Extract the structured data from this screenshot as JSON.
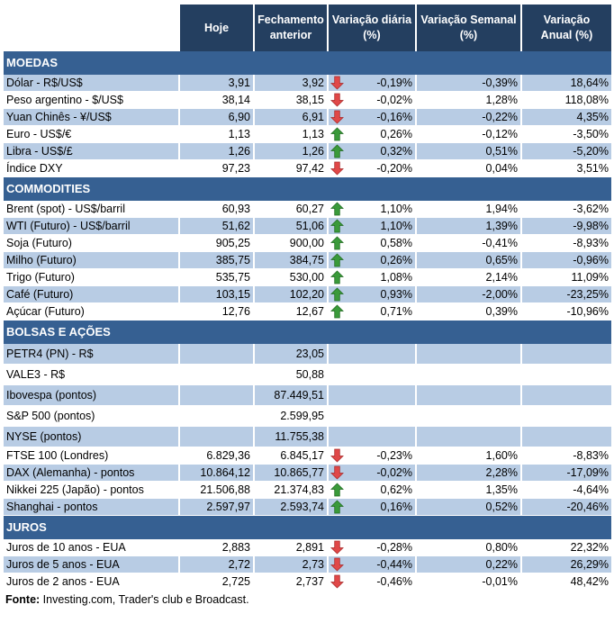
{
  "header": {
    "label": "",
    "hoje": "Hoje",
    "fechamento": "Fechamento anterior",
    "var_diaria": "Variação diária (%)",
    "var_semanal": "Variação Semanal (%)",
    "var_anual": "Variação Anual (%)"
  },
  "colors": {
    "header": "#243F60",
    "section": "#366092",
    "stripe": "#B8CCE4",
    "up": "#3A9A3A",
    "down": "#E04848"
  },
  "sections": [
    {
      "title": "MOEDAS",
      "rows": [
        {
          "name": "Dólar - R$/US$",
          "hoje": "3,91",
          "fech": "3,92",
          "dir": "down",
          "dia": "-0,19%",
          "sem": "-0,39%",
          "ano": "18,64%"
        },
        {
          "name": "Peso argentino - $/US$",
          "hoje": "38,14",
          "fech": "38,15",
          "dir": "down",
          "dia": "-0,02%",
          "sem": "1,28%",
          "ano": "118,08%"
        },
        {
          "name": "Yuan Chinês - ¥/US$",
          "hoje": "6,90",
          "fech": "6,91",
          "dir": "down",
          "dia": "-0,16%",
          "sem": "-0,22%",
          "ano": "4,35%"
        },
        {
          "name": "Euro - US$/€",
          "hoje": "1,13",
          "fech": "1,13",
          "dir": "up",
          "dia": "0,26%",
          "sem": "-0,12%",
          "ano": "-3,50%"
        },
        {
          "name": "Libra - US$/£",
          "hoje": "1,26",
          "fech": "1,26",
          "dir": "up",
          "dia": "0,32%",
          "sem": "0,51%",
          "ano": "-5,20%"
        },
        {
          "name": "Índice DXY",
          "hoje": "97,23",
          "fech": "97,42",
          "dir": "down",
          "dia": "-0,20%",
          "sem": "0,04%",
          "ano": "3,51%"
        }
      ]
    },
    {
      "title": "COMMODITIES",
      "rows": [
        {
          "name": "Brent (spot) - US$/barril",
          "hoje": "60,93",
          "fech": "60,27",
          "dir": "up",
          "dia": "1,10%",
          "sem": "1,94%",
          "ano": "-3,62%"
        },
        {
          "name": "WTI (Futuro) - US$/barril",
          "hoje": "51,62",
          "fech": "51,06",
          "dir": "up",
          "dia": "1,10%",
          "sem": "1,39%",
          "ano": "-9,98%"
        },
        {
          "name": "Soja (Futuro)",
          "hoje": "905,25",
          "fech": "900,00",
          "dir": "up",
          "dia": "0,58%",
          "sem": "-0,41%",
          "ano": "-8,93%"
        },
        {
          "name": "Milho (Futuro)",
          "hoje": "385,75",
          "fech": "384,75",
          "dir": "up",
          "dia": "0,26%",
          "sem": "0,65%",
          "ano": "-0,96%"
        },
        {
          "name": "Trigo (Futuro)",
          "hoje": "535,75",
          "fech": "530,00",
          "dir": "up",
          "dia": "1,08%",
          "sem": "2,14%",
          "ano": "11,09%"
        },
        {
          "name": "Café (Futuro)",
          "hoje": "103,15",
          "fech": "102,20",
          "dir": "up",
          "dia": "0,93%",
          "sem": "-2,00%",
          "ano": "-23,25%"
        },
        {
          "name": "Açúcar (Futuro)",
          "hoje": "12,76",
          "fech": "12,67",
          "dir": "up",
          "dia": "0,71%",
          "sem": "0,39%",
          "ano": "-10,96%"
        }
      ]
    },
    {
      "title": "BOLSAS E AÇÕES",
      "rows": [
        {
          "name": "PETR4 (PN) - R$",
          "hoje": "",
          "fech": "23,05",
          "dir": "",
          "dia": "",
          "sem": "",
          "ano": ""
        },
        {
          "name": "VALE3 - R$",
          "hoje": "",
          "fech": "50,88",
          "dir": "",
          "dia": "",
          "sem": "",
          "ano": ""
        },
        {
          "name": "Ibovespa (pontos)",
          "hoje": "",
          "fech": "87.449,51",
          "dir": "",
          "dia": "",
          "sem": "",
          "ano": ""
        },
        {
          "name": "S&P 500 (pontos)",
          "hoje": "",
          "fech": "2.599,95",
          "dir": "",
          "dia": "",
          "sem": "",
          "ano": ""
        },
        {
          "name": "NYSE (pontos)",
          "hoje": "",
          "fech": "11.755,38",
          "dir": "",
          "dia": "",
          "sem": "",
          "ano": ""
        },
        {
          "name": "FTSE 100 (Londres)",
          "hoje": "6.829,36",
          "fech": "6.845,17",
          "dir": "down",
          "dia": "-0,23%",
          "sem": "1,60%",
          "ano": "-8,83%"
        },
        {
          "name": "DAX (Alemanha) - pontos",
          "hoje": "10.864,12",
          "fech": "10.865,77",
          "dir": "down",
          "dia": "-0,02%",
          "sem": "2,28%",
          "ano": "-17,09%"
        },
        {
          "name": "Nikkei 225 (Japão) - pontos",
          "hoje": "21.506,88",
          "fech": "21.374,83",
          "dir": "up",
          "dia": "0,62%",
          "sem": "1,35%",
          "ano": "-4,64%"
        },
        {
          "name": "Shanghai - pontos",
          "hoje": "2.597,97",
          "fech": "2.593,74",
          "dir": "up",
          "dia": "0,16%",
          "sem": "0,52%",
          "ano": "-20,46%"
        }
      ]
    },
    {
      "title": "JUROS",
      "rows": [
        {
          "name": "Juros de 10 anos - EUA",
          "hoje": "2,883",
          "fech": "2,891",
          "dir": "down",
          "dia": "-0,28%",
          "sem": "0,80%",
          "ano": "22,32%"
        },
        {
          "name": "Juros de 5 anos - EUA",
          "hoje": "2,72",
          "fech": "2,73",
          "dir": "down",
          "dia": "-0,44%",
          "sem": "0,22%",
          "ano": "26,29%"
        },
        {
          "name": "Juros de 2 anos - EUA",
          "hoje": "2,725",
          "fech": "2,737",
          "dir": "down",
          "dia": "-0,46%",
          "sem": "-0,01%",
          "ano": "48,42%"
        }
      ]
    }
  ],
  "footer": {
    "label": "Fonte:",
    "text": " Investing.com, Trader's club e Broadcast."
  }
}
